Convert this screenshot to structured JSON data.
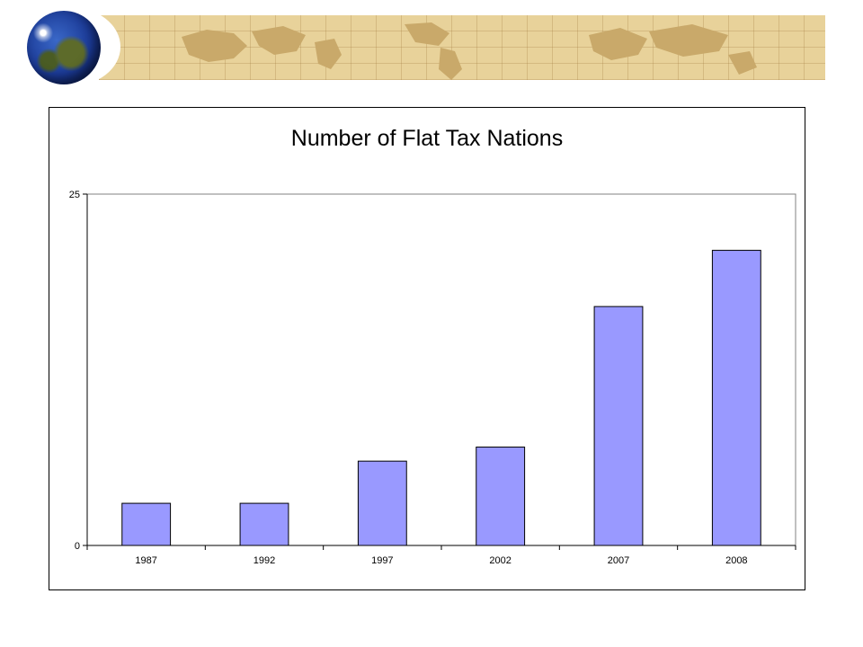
{
  "banner": {
    "globe_icon": "globe-icon",
    "map_icon": "world-map-icon",
    "color": "#e8d29a"
  },
  "chart_data": {
    "type": "bar",
    "title": "Number of Flat Tax Nations",
    "xlabel": "",
    "ylabel": "",
    "categories": [
      "1987",
      "1992",
      "1997",
      "2002",
      "2007",
      "2008"
    ],
    "values": [
      3,
      3,
      6,
      7,
      17,
      21
    ],
    "ylim": [
      0,
      25
    ],
    "yticks": [
      "0",
      "25"
    ],
    "bar_color": "#9999ff",
    "grid": false,
    "legend": "none"
  }
}
